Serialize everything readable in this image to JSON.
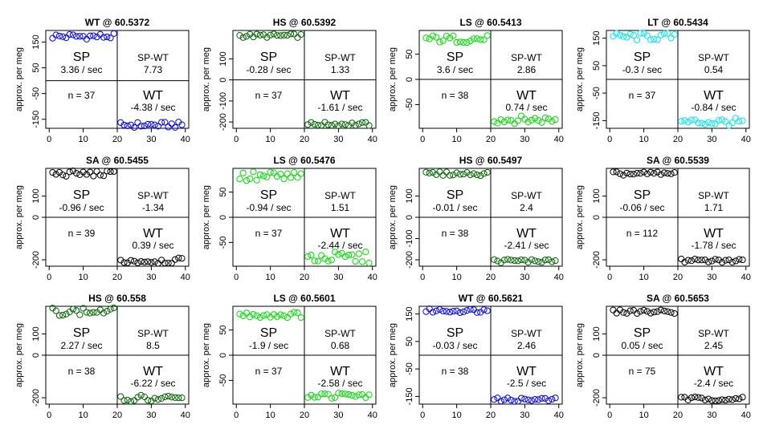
{
  "chart_data": [
    {
      "type": "scatter",
      "title": "WT @ 60.5372",
      "ylabel": "approx. per meg",
      "color": "#0000ff",
      "ylim": [
        -185,
        195
      ],
      "yticks": [
        150,
        50,
        -50,
        -150
      ],
      "xlim": [
        -1,
        41
      ],
      "xticks": [
        0,
        10,
        20,
        30,
        40
      ],
      "sp_label": "SP",
      "sp_rate": "3.36 / sec",
      "diff_label": "SP-WT",
      "diff_value": "7.73",
      "n_label": "n = 37",
      "wt_label": "WT",
      "wt_rate": "-4.38 / sec",
      "sp_level": 172,
      "wt_level": -172,
      "jitter": 3
    },
    {
      "type": "scatter",
      "title": "HS @ 60.5392",
      "ylabel": "approx. per meg",
      "color": "#006400",
      "ylim": [
        -230,
        235
      ],
      "yticks": [
        100,
        0,
        -100,
        -200
      ],
      "xlim": [
        -1,
        41
      ],
      "xticks": [
        0,
        10,
        20,
        30,
        40
      ],
      "sp_label": "SP",
      "sp_rate": "-0.28 / sec",
      "diff_label": "SP-WT",
      "diff_value": "1.33",
      "n_label": "n = 37",
      "wt_label": "WT",
      "wt_rate": "-1.61 / sec",
      "sp_level": 210,
      "wt_level": -210,
      "jitter": 2
    },
    {
      "type": "scatter",
      "title": "LS @ 60.5413",
      "ylabel": "approx. per meg",
      "color": "#00dd00",
      "ylim": [
        -97,
        97
      ],
      "yticks": [
        50,
        0,
        -50
      ],
      "xlim": [
        -1,
        41
      ],
      "xticks": [
        0,
        10,
        20,
        30,
        40
      ],
      "sp_label": "SP",
      "sp_rate": "3.6 / sec",
      "diff_label": "SP-WT",
      "diff_value": "2.86",
      "n_label": "n = 38",
      "wt_label": "WT",
      "wt_rate": "0.74 / sec",
      "wt_label_upper": true,
      "sp_level": 80,
      "wt_level": -80,
      "jitter": 4
    },
    {
      "type": "scatter",
      "title": "LT @ 60.5434",
      "ylabel": "approx. per meg",
      "color": "#00e5ee",
      "ylim": [
        -178,
        178
      ],
      "yticks": [
        150,
        50,
        -50,
        -150
      ],
      "xlim": [
        -1,
        41
      ],
      "xticks": [
        0,
        10,
        20,
        30,
        40
      ],
      "sp_label": "SP",
      "sp_rate": "-0.3 / sec",
      "diff_label": "SP-WT",
      "diff_value": "0.54",
      "n_label": "n = 37",
      "wt_label": "WT",
      "wt_rate": "-0.84 / sec",
      "sp_level": 155,
      "wt_level": -155,
      "jitter": 4
    },
    {
      "type": "scatter",
      "title": "SA @ 60.5455",
      "ylabel": "approx. per meg",
      "color": "#000000",
      "ylim": [
        -230,
        230
      ],
      "yticks": [
        100,
        0,
        -200
      ],
      "xlim": [
        -1,
        41
      ],
      "xticks": [
        0,
        10,
        20,
        30,
        40
      ],
      "sp_label": "SP",
      "sp_rate": "-0.96 / sec",
      "diff_label": "SP-WT",
      "diff_value": "-1.34",
      "n_label": "n = 39",
      "wt_label": "WT",
      "wt_rate": "0.39 / sec",
      "sp_level": 205,
      "wt_level": -205,
      "jitter": 3
    },
    {
      "type": "scatter",
      "title": "LS @ 60.5476",
      "ylabel": "approx. per meg",
      "color": "#00dd00",
      "ylim": [
        -97,
        97
      ],
      "yticks": [
        50,
        0,
        -50
      ],
      "xlim": [
        -1,
        41
      ],
      "xticks": [
        0,
        10,
        20,
        30,
        40
      ],
      "sp_label": "SP",
      "sp_rate": "-0.94 / sec",
      "diff_label": "SP-WT",
      "diff_value": "1.51",
      "n_label": "n = 37",
      "wt_label": "WT",
      "wt_rate": "-2.44 / sec",
      "sp_level": 80,
      "wt_level": -80,
      "jitter": 6
    },
    {
      "type": "scatter",
      "title": "HS @ 60.5497",
      "ylabel": "approx. per meg",
      "color": "#006400",
      "ylim": [
        -230,
        230
      ],
      "yticks": [
        100,
        0,
        -100,
        -200
      ],
      "xlim": [
        -1,
        41
      ],
      "xticks": [
        0,
        10,
        20,
        30,
        40
      ],
      "sp_label": "SP",
      "sp_rate": "-0.01 / sec",
      "diff_label": "SP-WT",
      "diff_value": "2.4",
      "n_label": "n = 38",
      "wt_label": "WT",
      "wt_rate": "-2.41 / sec",
      "sp_level": 205,
      "wt_level": -205,
      "jitter": 2
    },
    {
      "type": "scatter",
      "title": "SA @ 60.5539",
      "ylabel": "approx. per meg",
      "color": "#000000",
      "ylim": [
        -230,
        230
      ],
      "yticks": [
        100,
        0,
        -200
      ],
      "xlim": [
        -1,
        41
      ],
      "xticks": [
        0,
        10,
        20,
        30,
        40
      ],
      "sp_label": "SP",
      "sp_rate": "-0.06 / sec",
      "diff_label": "SP-WT",
      "diff_value": "1.71",
      "n_label": "n = 112",
      "wt_label": "WT",
      "wt_rate": "-1.78 / sec",
      "sp_level": 205,
      "wt_level": -205,
      "jitter": 2
    },
    {
      "type": "scatter",
      "title": "HS @ 60.558",
      "ylabel": "approx. per meg",
      "color": "#006400",
      "ylim": [
        -230,
        230
      ],
      "yticks": [
        100,
        0,
        -200
      ],
      "xlim": [
        -1,
        41
      ],
      "xticks": [
        0,
        10,
        20,
        30,
        40
      ],
      "sp_label": "SP",
      "sp_rate": "2.27 / sec",
      "diff_label": "SP-WT",
      "diff_value": "8.5",
      "n_label": "n = 38",
      "wt_label": "WT",
      "wt_rate": "-6.22 / sec",
      "sp_level": 205,
      "wt_level": -205,
      "jitter": 4
    },
    {
      "type": "scatter",
      "title": "LS @ 60.5601",
      "ylabel": "approx. per meg",
      "color": "#00dd00",
      "ylim": [
        -97,
        97
      ],
      "yticks": [
        50,
        0,
        -50
      ],
      "xlim": [
        -1,
        41
      ],
      "xticks": [
        0,
        10,
        20,
        30,
        40
      ],
      "sp_label": "SP",
      "sp_rate": "-1.9 / sec",
      "diff_label": "SP-WT",
      "diff_value": "0.68",
      "n_label": "n = 37",
      "wt_label": "WT",
      "wt_rate": "-2.58 / sec",
      "sp_level": 80,
      "wt_level": -80,
      "jitter": 3
    },
    {
      "type": "scatter",
      "title": "WT @ 60.5621",
      "ylabel": "approx. per meg",
      "color": "#0000ff",
      "ylim": [
        -178,
        178
      ],
      "yticks": [
        150,
        50,
        -50,
        -150
      ],
      "xlim": [
        -1,
        41
      ],
      "xticks": [
        0,
        10,
        20,
        30,
        40
      ],
      "sp_label": "SP",
      "sp_rate": "-0.03 / sec",
      "diff_label": "SP-WT",
      "diff_value": "2.46",
      "n_label": "n = 38",
      "wt_label": "WT",
      "wt_rate": "-2.5 / sec",
      "sp_level": 162,
      "wt_level": -162,
      "jitter": 2
    },
    {
      "type": "scatter",
      "title": "SA @ 60.5653",
      "ylabel": "approx. per meg",
      "color": "#000000",
      "ylim": [
        -230,
        230
      ],
      "yticks": [
        100,
        0,
        -200
      ],
      "xlim": [
        -1,
        41
      ],
      "xticks": [
        0,
        10,
        20,
        30,
        40
      ],
      "sp_label": "SP",
      "sp_rate": "0.05 / sec",
      "diff_label": "SP-WT",
      "diff_value": "2.45",
      "n_label": "n = 75",
      "wt_label": "WT",
      "wt_rate": "-2.4 / sec",
      "sp_level": 205,
      "wt_level": -205,
      "jitter": 2
    }
  ]
}
